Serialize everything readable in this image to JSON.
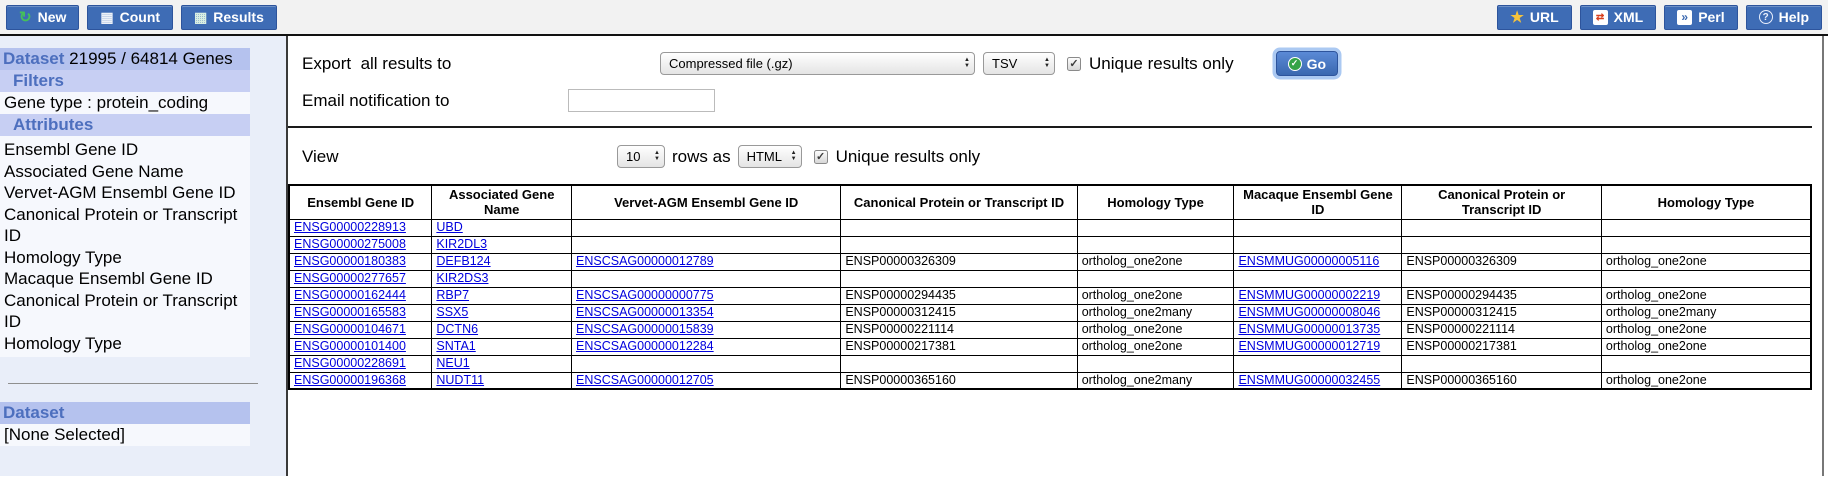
{
  "colors": {
    "button_blue": "#3e6cb5",
    "band_dark": "#b5c2ee",
    "band_light": "#c7cff3",
    "link_blue": "#0000dd",
    "go_green": "#35a347",
    "star_yellow": "#f6c33c"
  },
  "toolbar": {
    "left": [
      {
        "label": "New",
        "icon": "new-refresh-icon"
      },
      {
        "label": "Count",
        "icon": "calculator-icon"
      },
      {
        "label": "Results",
        "icon": "results-table-icon"
      }
    ],
    "right": [
      {
        "label": "URL",
        "icon": "star-icon"
      },
      {
        "label": "XML",
        "icon": "xml-file-icon"
      },
      {
        "label": "Perl",
        "icon": "perl-script-icon"
      },
      {
        "label": "Help",
        "icon": "help-icon"
      }
    ]
  },
  "sidebar": {
    "dataset_label": "Dataset",
    "dataset_count": "21995 / 64814 Genes",
    "filters_label": "Filters",
    "filters": [
      "Gene type : protein_coding"
    ],
    "attributes_label": "Attributes",
    "attributes": [
      "Ensembl Gene ID",
      "Associated Gene Name",
      "Vervet-AGM Ensembl Gene ID",
      "Canonical Protein or Transcript ID",
      "Homology Type",
      "Macaque Ensembl Gene ID",
      "Canonical Protein or Transcript ID",
      "Homology Type"
    ],
    "dataset2_label": "Dataset",
    "dataset2_value": "[None Selected]"
  },
  "export_section": {
    "export_label": "Export  all results to",
    "format_selected": "Compressed file (.gz)",
    "filetype_selected": "TSV",
    "unique_checked": true,
    "unique_label": "Unique results only",
    "go_label": "Go",
    "email_label": "Email notification to",
    "email_value": ""
  },
  "view_section": {
    "view_label": "View",
    "rows_selected": "10",
    "rows_as_label": "rows as",
    "format_selected": "HTML",
    "unique_checked": true,
    "unique_label": "Unique results only"
  },
  "results_table": {
    "headers": [
      "Ensembl Gene ID",
      "Associated Gene Name",
      "Vervet-AGM Ensembl Gene ID",
      "Canonical Protein or Transcript ID",
      "Homology Type",
      "Macaque Ensembl Gene ID",
      "Canonical Protein or Transcript ID",
      "Homology Type"
    ],
    "link_columns": [
      0,
      1,
      2,
      5
    ],
    "rows": [
      [
        "ENSG00000228913",
        "UBD",
        "",
        "",
        "",
        "",
        "",
        ""
      ],
      [
        "ENSG00000275008",
        "KIR2DL3",
        "",
        "",
        "",
        "",
        "",
        ""
      ],
      [
        "ENSG00000180383",
        "DEFB124",
        "ENSCSAG00000012789",
        "ENSP00000326309",
        "ortholog_one2one",
        "ENSMMUG00000005116",
        "ENSP00000326309",
        "ortholog_one2one"
      ],
      [
        "ENSG00000277657",
        "KIR2DS3",
        "",
        "",
        "",
        "",
        "",
        ""
      ],
      [
        "ENSG00000162444",
        "RBP7",
        "ENSCSAG00000000775",
        "ENSP00000294435",
        "ortholog_one2one",
        "ENSMMUG00000002219",
        "ENSP00000294435",
        "ortholog_one2one"
      ],
      [
        "ENSG00000165583",
        "SSX5",
        "ENSCSAG00000013354",
        "ENSP00000312415",
        "ortholog_one2many",
        "ENSMMUG00000008046",
        "ENSP00000312415",
        "ortholog_one2many"
      ],
      [
        "ENSG00000104671",
        "DCTN6",
        "ENSCSAG00000015839",
        "ENSP00000221114",
        "ortholog_one2one",
        "ENSMMUG00000013735",
        "ENSP00000221114",
        "ortholog_one2one"
      ],
      [
        "ENSG00000101400",
        "SNTA1",
        "ENSCSAG00000012284",
        "ENSP00000217381",
        "ortholog_one2one",
        "ENSMMUG00000012719",
        "ENSP00000217381",
        "ortholog_one2one"
      ],
      [
        "ENSG00000228691",
        "NEU1",
        "",
        "",
        "",
        "",
        "",
        ""
      ],
      [
        "ENSG00000196368",
        "NUDT11",
        "ENSCSAG00000012705",
        "ENSP00000365160",
        "ortholog_one2many",
        "ENSMMUG00000032455",
        "ENSP00000365160",
        "ortholog_one2one"
      ]
    ]
  }
}
